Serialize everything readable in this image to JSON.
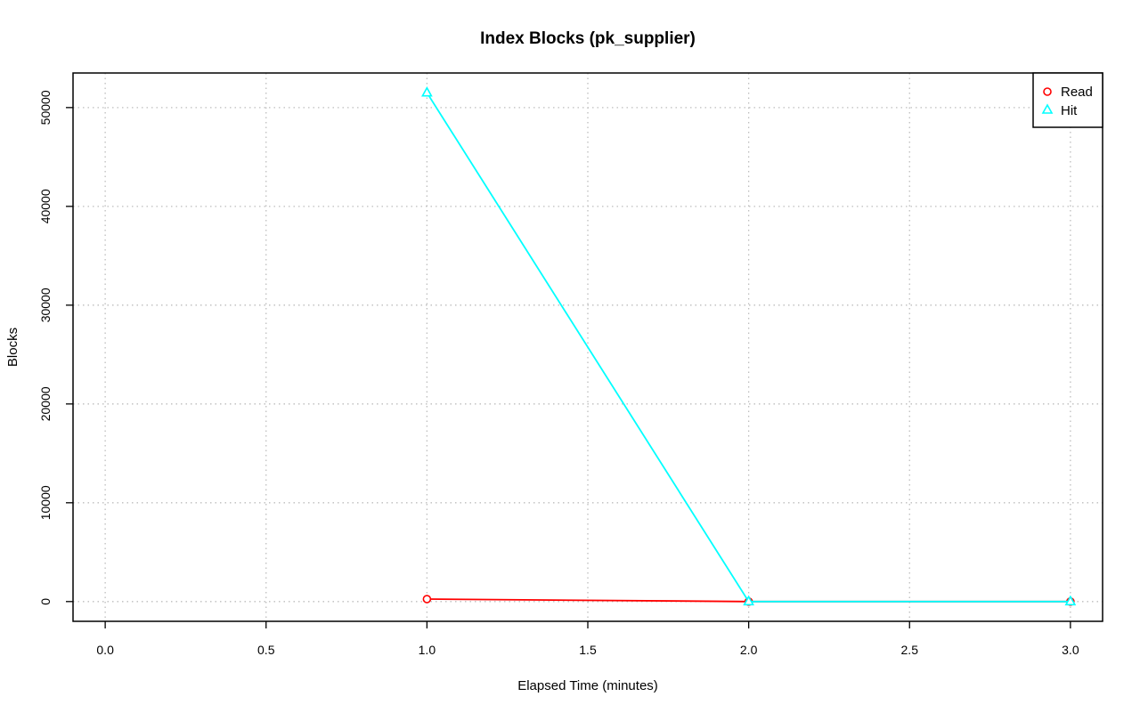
{
  "chart_data": {
    "type": "line",
    "title": "Index Blocks (pk_supplier)",
    "xlabel": "Elapsed Time (minutes)",
    "ylabel": "Blocks",
    "xlim": [
      -0.1,
      3.1
    ],
    "ylim": [
      -2000,
      53500
    ],
    "xticks": [
      "0.0",
      "0.5",
      "1.0",
      "1.5",
      "2.0",
      "2.5",
      "3.0"
    ],
    "yticks": [
      "0",
      "10000",
      "20000",
      "30000",
      "40000",
      "50000"
    ],
    "grid": true,
    "legend_position": "top-right",
    "series": [
      {
        "name": "Read",
        "color": "#ff0000",
        "marker": "circle",
        "x": [
          1,
          2,
          3
        ],
        "y": [
          250,
          0,
          0
        ]
      },
      {
        "name": "Hit",
        "color": "#00ffff",
        "marker": "triangle",
        "x": [
          1,
          2,
          3
        ],
        "y": [
          51500,
          0,
          0
        ]
      }
    ]
  }
}
